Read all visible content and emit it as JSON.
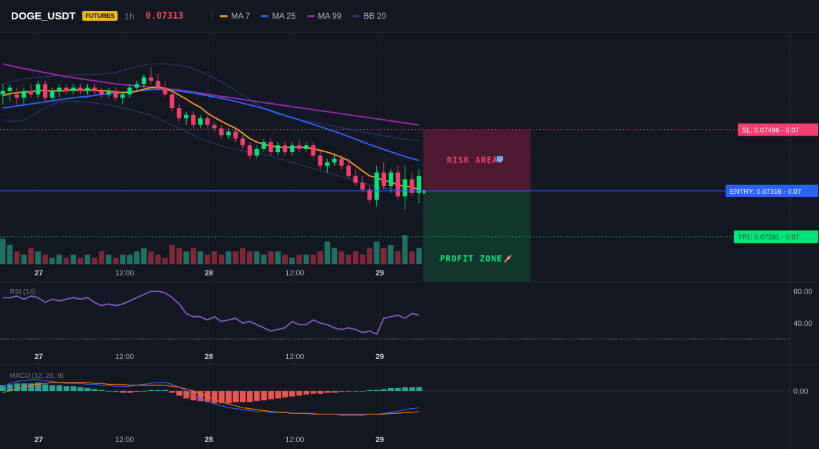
{
  "header": {
    "symbol": "DOGE_USDT",
    "market_badge": "FUTURES",
    "interval": "1h",
    "price": "0.07313"
  },
  "legend": [
    {
      "label": "MA 7",
      "color": "#f7931a"
    },
    {
      "label": "MA 25",
      "color": "#2962ff"
    },
    {
      "label": "MA 99",
      "color": "#9c27b0"
    },
    {
      "label": "BB 20",
      "color": "#1e3a8a"
    }
  ],
  "colors": {
    "background": "#131722",
    "grid": "#1e222d",
    "bull": "#00e676",
    "bear": "#f23d6d",
    "risk": "#f23d6d",
    "profit": "#00e676",
    "entry": "#2962ff",
    "rsi": "#7e57c2"
  },
  "zones": {
    "risk_label": "RISK AREA",
    "risk_icon": "shield-icon",
    "profit_label": "PROFIT ZONE",
    "profit_icon": "rocket-icon"
  },
  "levels": [
    {
      "label": "SL: 0.07496",
      "suffix": "- 0.07",
      "value": 0.07496,
      "color": "#f23d6d"
    },
    {
      "label": "ENTRY: 0.07316",
      "suffix": "- 0.07",
      "value": 0.07316,
      "color": "#2962ff"
    },
    {
      "label": "TP1: 0.07181",
      "suffix": "- 0.07",
      "value": 0.07181,
      "color": "#00e676"
    }
  ],
  "x_ticks": [
    "27",
    "12:00",
    "28",
    "12:00",
    "29"
  ],
  "rsi_pane": {
    "title": "RSI (14)",
    "ticks": [
      "60.00",
      "40.00"
    ]
  },
  "macd_pane": {
    "title": "MACD (12, 26, 9)",
    "ticks": [
      "0.00"
    ]
  },
  "chart_data": {
    "type": "candlestick",
    "candles": [
      [
        0.076,
        0.0763,
        0.0757,
        0.0761
      ],
      [
        0.0761,
        0.0763,
        0.0758,
        0.0762
      ],
      [
        0.076,
        0.0762,
        0.0757,
        0.0759
      ],
      [
        0.0759,
        0.0762,
        0.0757,
        0.0761
      ],
      [
        0.0761,
        0.0763,
        0.0759,
        0.076
      ],
      [
        0.076,
        0.0764,
        0.0759,
        0.0763
      ],
      [
        0.0763,
        0.0764,
        0.0758,
        0.0759
      ],
      [
        0.0759,
        0.0762,
        0.0758,
        0.0761
      ],
      [
        0.0761,
        0.0763,
        0.0759,
        0.0762
      ],
      [
        0.0762,
        0.0763,
        0.076,
        0.0761
      ],
      [
        0.0761,
        0.0763,
        0.076,
        0.0762
      ],
      [
        0.0762,
        0.0763,
        0.076,
        0.0761
      ],
      [
        0.0761,
        0.0763,
        0.076,
        0.0762
      ],
      [
        0.0762,
        0.0763,
        0.076,
        0.0761
      ],
      [
        0.0761,
        0.0762,
        0.0759,
        0.076
      ],
      [
        0.076,
        0.0762,
        0.0759,
        0.0761
      ],
      [
        0.0761,
        0.0762,
        0.0758,
        0.0759
      ],
      [
        0.0759,
        0.0761,
        0.0757,
        0.076
      ],
      [
        0.076,
        0.0763,
        0.0759,
        0.0762
      ],
      [
        0.0762,
        0.0764,
        0.0761,
        0.0763
      ],
      [
        0.0763,
        0.0766,
        0.0762,
        0.0765
      ],
      [
        0.0765,
        0.0768,
        0.0763,
        0.0764
      ],
      [
        0.0764,
        0.0766,
        0.0761,
        0.0762
      ],
      [
        0.0762,
        0.0764,
        0.0759,
        0.076
      ],
      [
        0.076,
        0.0761,
        0.0755,
        0.0756
      ],
      [
        0.0756,
        0.0757,
        0.0752,
        0.0753
      ],
      [
        0.0753,
        0.0755,
        0.0751,
        0.0754
      ],
      [
        0.0754,
        0.0755,
        0.075,
        0.0751
      ],
      [
        0.0751,
        0.0754,
        0.075,
        0.0753
      ],
      [
        0.0753,
        0.0754,
        0.075,
        0.0751
      ],
      [
        0.0751,
        0.0752,
        0.0749,
        0.075
      ],
      [
        0.075,
        0.0751,
        0.0747,
        0.0748
      ],
      [
        0.0748,
        0.075,
        0.0747,
        0.0749
      ],
      [
        0.0749,
        0.075,
        0.0746,
        0.0747
      ],
      [
        0.0747,
        0.0748,
        0.0744,
        0.0745
      ],
      [
        0.0745,
        0.0746,
        0.0741,
        0.0742
      ],
      [
        0.0742,
        0.0745,
        0.0741,
        0.0744
      ],
      [
        0.0744,
        0.0747,
        0.0743,
        0.0746
      ],
      [
        0.0746,
        0.0747,
        0.0742,
        0.0743
      ],
      [
        0.0743,
        0.0746,
        0.0742,
        0.0745
      ],
      [
        0.0745,
        0.0746,
        0.0742,
        0.0743
      ],
      [
        0.0743,
        0.0746,
        0.0742,
        0.0745
      ],
      [
        0.0745,
        0.0747,
        0.0743,
        0.0744
      ],
      [
        0.0744,
        0.0746,
        0.0743,
        0.0745
      ],
      [
        0.0745,
        0.0746,
        0.0741,
        0.0742
      ],
      [
        0.0742,
        0.0743,
        0.0738,
        0.0739
      ],
      [
        0.0739,
        0.0741,
        0.0737,
        0.074
      ],
      [
        0.074,
        0.0742,
        0.0739,
        0.0741
      ],
      [
        0.0741,
        0.0742,
        0.0738,
        0.0739
      ],
      [
        0.0739,
        0.0741,
        0.0735,
        0.0736
      ],
      [
        0.0736,
        0.0738,
        0.0733,
        0.0734
      ],
      [
        0.0734,
        0.0736,
        0.0731,
        0.0732
      ],
      [
        0.0732,
        0.0733,
        0.0728,
        0.0729
      ],
      [
        0.0729,
        0.0739,
        0.0727,
        0.0737
      ],
      [
        0.0737,
        0.074,
        0.0732,
        0.0733
      ],
      [
        0.0733,
        0.0738,
        0.0731,
        0.0737
      ],
      [
        0.0737,
        0.0739,
        0.0729,
        0.073
      ],
      [
        0.073,
        0.0739,
        0.0726,
        0.0735
      ],
      [
        0.0735,
        0.0737,
        0.073,
        0.0731
      ],
      [
        0.0731,
        0.0738,
        0.0728,
        0.0736
      ]
    ],
    "volume": [
      8,
      6,
      4,
      3,
      5,
      4,
      3,
      2,
      3,
      2,
      3,
      2,
      3,
      2,
      4,
      3,
      2,
      3,
      3,
      4,
      5,
      4,
      3,
      2,
      6,
      5,
      4,
      5,
      4,
      3,
      4,
      3,
      4,
      4,
      5,
      4,
      4,
      3,
      4,
      4,
      3,
      2,
      3,
      3,
      3,
      4,
      7,
      5,
      4,
      3,
      4,
      3,
      5,
      7,
      5,
      6,
      4,
      9,
      4,
      5
    ],
    "ma7": [
      0.07596,
      0.07602,
      0.07605,
      0.07607,
      0.07608,
      0.07612,
      0.07611,
      0.0761,
      0.0761,
      0.07611,
      0.07614,
      0.07612,
      0.07613,
      0.07612,
      0.07611,
      0.0761,
      0.07607,
      0.07605,
      0.07606,
      0.07609,
      0.07615,
      0.0762,
      0.07621,
      0.07618,
      0.07609,
      0.07598,
      0.07586,
      0.07573,
      0.07562,
      0.07545,
      0.07532,
      0.07521,
      0.0751,
      0.075,
      0.07486,
      0.0747,
      0.0746,
      0.07453,
      0.07448,
      0.07445,
      0.07444,
      0.07444,
      0.07445,
      0.07443,
      0.0744,
      0.07435,
      0.0743,
      0.07423,
      0.07415,
      0.07405,
      0.0739,
      0.07375,
      0.0736,
      0.07355,
      0.07346,
      0.07343,
      0.07333,
      0.0733,
      0.07327,
      0.0732
    ],
    "ma25": [
      0.0756,
      0.07563,
      0.07566,
      0.07569,
      0.07572,
      0.07575,
      0.07578,
      0.07581,
      0.07584,
      0.07587,
      0.0759,
      0.07592,
      0.07594,
      0.07597,
      0.076,
      0.07602,
      0.07604,
      0.07606,
      0.07608,
      0.0761,
      0.07612,
      0.07614,
      0.07615,
      0.07614,
      0.07612,
      0.0761,
      0.07607,
      0.07604,
      0.076,
      0.07596,
      0.07592,
      0.07588,
      0.07584,
      0.07579,
      0.07574,
      0.07569,
      0.07564,
      0.07558,
      0.07552,
      0.07545,
      0.07538,
      0.07532,
      0.07525,
      0.07518,
      0.07512,
      0.07505,
      0.07498,
      0.07491,
      0.07484,
      0.07476,
      0.07468,
      0.0746,
      0.07452,
      0.07445,
      0.07438,
      0.07431,
      0.07424,
      0.07417,
      0.07411,
      0.07405
    ],
    "ma99": [
      0.0769,
      0.07685,
      0.0768,
      0.07676,
      0.07672,
      0.07668,
      0.07664,
      0.0766,
      0.07656,
      0.07652,
      0.07649,
      0.07646,
      0.07643,
      0.0764,
      0.07637,
      0.07634,
      0.07631,
      0.07629,
      0.07627,
      0.07625,
      0.07623,
      0.07621,
      0.07619,
      0.07617,
      0.07615,
      0.07613,
      0.0761,
      0.07607,
      0.07604,
      0.076,
      0.07597,
      0.07594,
      0.07591,
      0.07588,
      0.07585,
      0.07582,
      0.07579,
      0.07576,
      0.07573,
      0.0757,
      0.07567,
      0.07564,
      0.07561,
      0.07558,
      0.07555,
      0.07552,
      0.07549,
      0.07546,
      0.07543,
      0.0754,
      0.07537,
      0.07534,
      0.07531,
      0.07528,
      0.07525,
      0.07522,
      0.07519,
      0.07516,
      0.07513,
      0.0751
    ],
    "bb_upper": [
      0.0763,
      0.07636,
      0.07641,
      0.07645,
      0.07648,
      0.0765,
      0.07652,
      0.07654,
      0.07655,
      0.07656,
      0.07657,
      0.07658,
      0.07658,
      0.07659,
      0.0766,
      0.07662,
      0.07665,
      0.0767,
      0.07676,
      0.07682,
      0.07686,
      0.07689,
      0.0769,
      0.0769,
      0.07689,
      0.07686,
      0.07682,
      0.07676,
      0.07668,
      0.07658,
      0.07648,
      0.07637,
      0.07624,
      0.07611,
      0.07598,
      0.07585,
      0.07572,
      0.0756,
      0.0755,
      0.07542,
      0.07536,
      0.0753,
      0.07526,
      0.07522,
      0.07518,
      0.07514,
      0.0751,
      0.07506,
      0.07502,
      0.07498,
      0.07494,
      0.0749,
      0.07486,
      0.07482,
      0.07478,
      0.07474,
      0.0747,
      0.07468,
      0.07466,
      0.07464
    ],
    "bb_lower": [
      0.07525,
      0.07522,
      0.0752,
      0.07525,
      0.07535,
      0.07548,
      0.0756,
      0.0757,
      0.07578,
      0.0758,
      0.0758,
      0.07579,
      0.07577,
      0.07575,
      0.07572,
      0.07569,
      0.07565,
      0.0756,
      0.07555,
      0.0755,
      0.07545,
      0.07538,
      0.0753,
      0.0752,
      0.0751,
      0.075,
      0.0749,
      0.0748,
      0.0747,
      0.07462,
      0.07455,
      0.07449,
      0.07443,
      0.07438,
      0.07434,
      0.07431,
      0.07428,
      0.07424,
      0.07418,
      0.07412,
      0.07406,
      0.074,
      0.07394,
      0.07388,
      0.07382,
      0.07376,
      0.0737,
      0.07364,
      0.07358,
      0.07352,
      0.07346,
      0.0734,
      0.07334,
      0.07328,
      0.07324,
      0.07321,
      0.07318,
      0.07316,
      0.07314,
      0.07312
    ],
    "rsi": [
      56,
      56,
      57,
      55,
      57,
      56,
      53,
      55,
      54,
      55,
      56,
      55,
      56,
      53,
      51,
      52,
      51,
      52,
      54,
      56,
      58,
      60,
      60,
      59,
      56,
      52,
      46,
      44,
      44,
      42,
      44,
      41,
      42,
      43,
      40,
      41,
      39,
      37,
      35,
      36,
      37,
      41,
      39,
      39,
      42,
      40,
      39,
      37,
      36,
      37,
      36,
      34,
      35,
      33,
      43,
      44,
      45,
      43,
      46,
      45
    ],
    "macd_hist": [
      6,
      7,
      8,
      8,
      8,
      9,
      7,
      6,
      6,
      5,
      5,
      4,
      3,
      2,
      1,
      0,
      -1,
      -2,
      -2,
      -1,
      0,
      1,
      1,
      1,
      -2,
      -5,
      -8,
      -10,
      -11,
      -12,
      -13,
      -13,
      -13,
      -12,
      -12,
      -12,
      -11,
      -10,
      -9,
      -8,
      -7,
      -6,
      -5,
      -4,
      -3,
      -3,
      -2,
      -2,
      -1,
      -1,
      0,
      0,
      1,
      1,
      2,
      3,
      3,
      4,
      4,
      4
    ],
    "macd_line": [
      4,
      8,
      10,
      11,
      12,
      12,
      11,
      10,
      9,
      8,
      8,
      8,
      7,
      7,
      6,
      6,
      5,
      5,
      5,
      6,
      7,
      8,
      9,
      9,
      7,
      4,
      0,
      -4,
      -8,
      -11,
      -14,
      -16,
      -18,
      -19,
      -20,
      -21,
      -22,
      -22,
      -23,
      -23,
      -23,
      -24,
      -24,
      -24,
      -24,
      -25,
      -25,
      -25,
      -26,
      -26,
      -26,
      -26,
      -25,
      -25,
      -24,
      -23,
      -22,
      -20,
      -19,
      -18
    ],
    "macd_signal": [
      -2,
      0,
      2,
      4,
      6,
      7,
      8,
      9,
      9,
      9,
      9,
      9,
      9,
      8,
      8,
      7,
      7,
      7,
      6,
      6,
      6,
      6,
      6,
      6,
      5,
      4,
      2,
      0,
      -3,
      -6,
      -9,
      -12,
      -14,
      -16,
      -18,
      -19,
      -20,
      -21,
      -22,
      -23,
      -23,
      -24,
      -24,
      -24,
      -25,
      -25,
      -25,
      -25,
      -25,
      -25,
      -25,
      -25,
      -25,
      -25,
      -25,
      -24,
      -24,
      -23,
      -23,
      -22
    ],
    "y_range": [
      0.071,
      0.0778
    ]
  }
}
